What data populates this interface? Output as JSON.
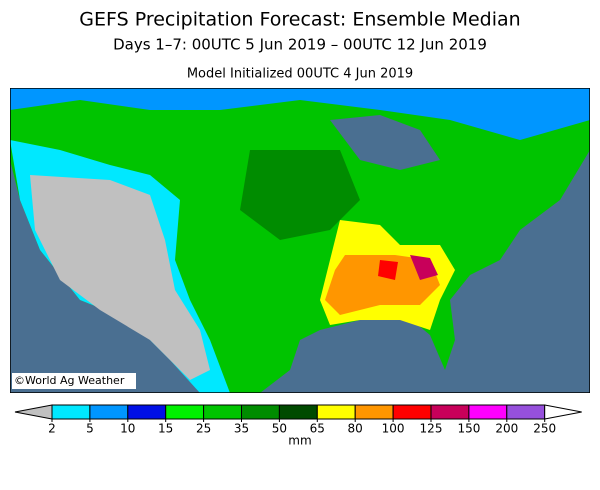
{
  "header": {
    "title": "GEFS Precipitation Forecast: Ensemble Median",
    "subtitle": "Days 1–7: 00UTC 5 Jun 2019 – 00UTC 12 Jun 2019",
    "init": "Model Initialized 00UTC 4 Jun 2019"
  },
  "map": {
    "credit": "©World Ag Weather"
  },
  "legend": {
    "ticks": [
      2,
      5,
      10,
      15,
      25,
      35,
      50,
      65,
      80,
      100,
      125,
      150,
      200,
      250
    ],
    "colors": [
      "#c0c0c0",
      "#00e8ff",
      "#0096ff",
      "#0010e6",
      "#00f000",
      "#00c400",
      "#008c00",
      "#004a00",
      "#ffff00",
      "#ff9600",
      "#ff0000",
      "#c8005a",
      "#ff00ff",
      "#9650dc",
      "#ffffff"
    ],
    "unit": "mm"
  }
}
